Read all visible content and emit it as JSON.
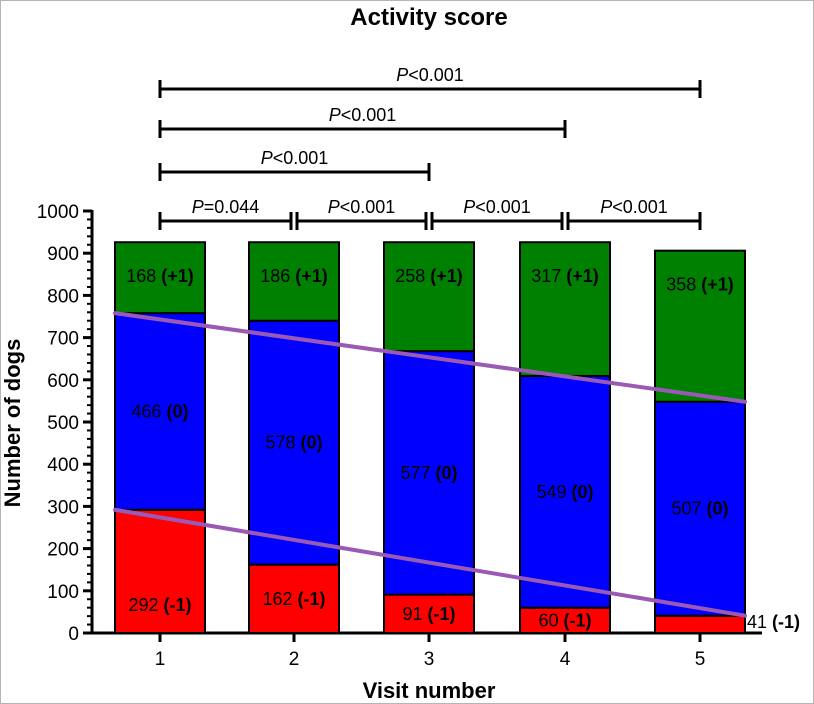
{
  "chart_data": {
    "type": "bar",
    "stacked": true,
    "title": "Activity score",
    "xlabel": "Visit number",
    "ylabel": "Number of dogs",
    "ylim": [
      0,
      1000
    ],
    "yticks": [
      0,
      100,
      200,
      300,
      400,
      500,
      600,
      700,
      800,
      900,
      1000
    ],
    "categories": [
      "1",
      "2",
      "3",
      "4",
      "5"
    ],
    "series": [
      {
        "name": "(-1)",
        "color": "#ff0000",
        "values": [
          292,
          162,
          91,
          60,
          41
        ],
        "labels": [
          "292 (-1)",
          "162 (-1)",
          "91 (-1)",
          "60 (-1)",
          "41 (-1)"
        ]
      },
      {
        "name": "(0)",
        "color": "#0000ff",
        "values": [
          466,
          578,
          577,
          549,
          507
        ],
        "labels": [
          "466 (0)",
          "578 (0)",
          "577 (0)",
          "549 (0)",
          "507 (0)"
        ]
      },
      {
        "name": "(+1)",
        "color": "#008000",
        "values": [
          168,
          186,
          258,
          317,
          358
        ],
        "labels": [
          "168 (+1)",
          "186 (+1)",
          "258 (+1)",
          "317 (+1)",
          "358 (+1)"
        ]
      }
    ],
    "trend_lines": [
      {
        "name": "trend-neg1",
        "color": "#9b59b6",
        "from": [
          1,
          292
        ],
        "to": [
          5,
          41
        ]
      },
      {
        "name": "trend-zero-top",
        "color": "#9b59b6",
        "from": [
          1,
          758
        ],
        "to": [
          5,
          548
        ]
      }
    ],
    "significance": [
      {
        "from": 1,
        "to": 5,
        "label": "P<0.001"
      },
      {
        "from": 1,
        "to": 4,
        "label": "P<0.001"
      },
      {
        "from": 1,
        "to": 3,
        "label": "P<0.001"
      },
      {
        "from": 1,
        "to": 2,
        "label": "P=0.044"
      },
      {
        "from": 2,
        "to": 3,
        "label": "P<0.001"
      },
      {
        "from": 3,
        "to": 4,
        "label": "P<0.001"
      },
      {
        "from": 4,
        "to": 5,
        "label": "P<0.001"
      }
    ]
  }
}
